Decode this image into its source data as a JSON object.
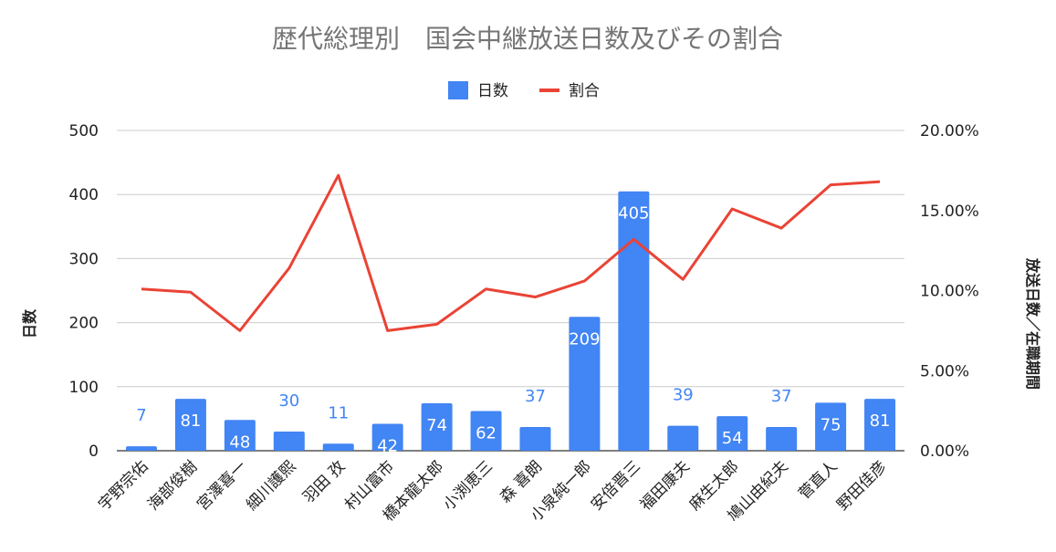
{
  "chart_data": {
    "type": "bar",
    "title": "歴代総理別　国会中継放送日数及びその割合",
    "legend": [
      {
        "name": "日数",
        "color": "#4285F4",
        "kind": "bar"
      },
      {
        "name": "割合",
        "color": "#EA4335",
        "kind": "line"
      }
    ],
    "legend_position": "top",
    "categories": [
      "宇野宗佑",
      "海部俊樹",
      "宮澤喜一",
      "細川護熙",
      "羽田 孜",
      "村山富市",
      "橋本龍太郎",
      "小渕恵三",
      "森 喜朗",
      "小泉純一郎",
      "安倍晋三",
      "福田康夫",
      "麻生太郎",
      "鳩山由紀夫",
      "菅直人",
      "野田佳彦"
    ],
    "series": [
      {
        "name": "日数",
        "type": "bar",
        "axis": "left",
        "color": "#4285F4",
        "values": [
          7,
          81,
          48,
          30,
          11,
          42,
          74,
          62,
          37,
          209,
          405,
          39,
          54,
          37,
          75,
          81
        ]
      },
      {
        "name": "割合",
        "type": "line",
        "axis": "right",
        "color": "#EA4335",
        "values": [
          0.101,
          0.099,
          0.075,
          0.114,
          0.172,
          0.075,
          0.079,
          0.101,
          0.096,
          0.106,
          0.132,
          0.107,
          0.151,
          0.139,
          0.166,
          0.168
        ]
      }
    ],
    "ylabel": "日数",
    "ylim": [
      0,
      500
    ],
    "yticks": [
      "0",
      "100",
      "200",
      "300",
      "400",
      "500"
    ],
    "y2label": "放送日数／在職期間",
    "y2lim": [
      0,
      0.2
    ],
    "y2ticks": [
      "0.00%",
      "5.00%",
      "10.00%",
      "15.00%",
      "20.00%"
    ],
    "grid": true,
    "data_labels": [
      "7",
      "81",
      "48",
      "30",
      "11",
      "42",
      "74",
      "62",
      "37",
      "209",
      "405",
      "39",
      "54",
      "37",
      "75",
      "81"
    ]
  }
}
